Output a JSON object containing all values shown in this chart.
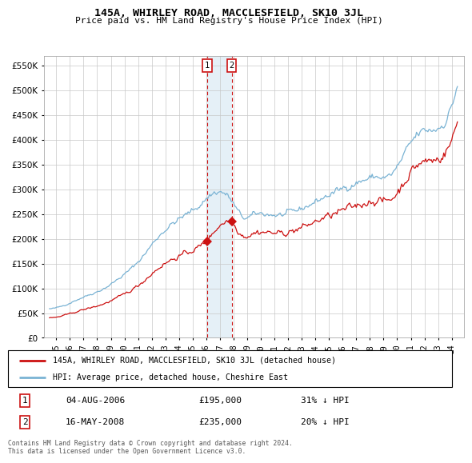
{
  "title": "145A, WHIRLEY ROAD, MACCLESFIELD, SK10 3JL",
  "subtitle": "Price paid vs. HM Land Registry's House Price Index (HPI)",
  "hpi_label": "HPI: Average price, detached house, Cheshire East",
  "property_label": "145A, WHIRLEY ROAD, MACCLESFIELD, SK10 3JL (detached house)",
  "transaction1_date": "04-AUG-2006",
  "transaction1_price": "£195,000",
  "transaction1_pct": "31% ↓ HPI",
  "transaction2_date": "16-MAY-2008",
  "transaction2_price": "£235,000",
  "transaction2_pct": "20% ↓ HPI",
  "footer": "Contains HM Land Registry data © Crown copyright and database right 2024.\nThis data is licensed under the Open Government Licence v3.0.",
  "hpi_color": "#7ab3d4",
  "property_color": "#cc1111",
  "shading_color": "#daeaf5",
  "marker1_year": 2006.58,
  "marker2_year": 2008.37,
  "marker1_price": 195000,
  "marker2_price": 235000,
  "ylim": [
    0,
    570000
  ],
  "yticks": [
    0,
    50000,
    100000,
    150000,
    200000,
    250000,
    300000,
    350000,
    400000,
    450000,
    500000,
    550000
  ],
  "background_color": "#ffffff",
  "grid_color": "#c8c8c8"
}
